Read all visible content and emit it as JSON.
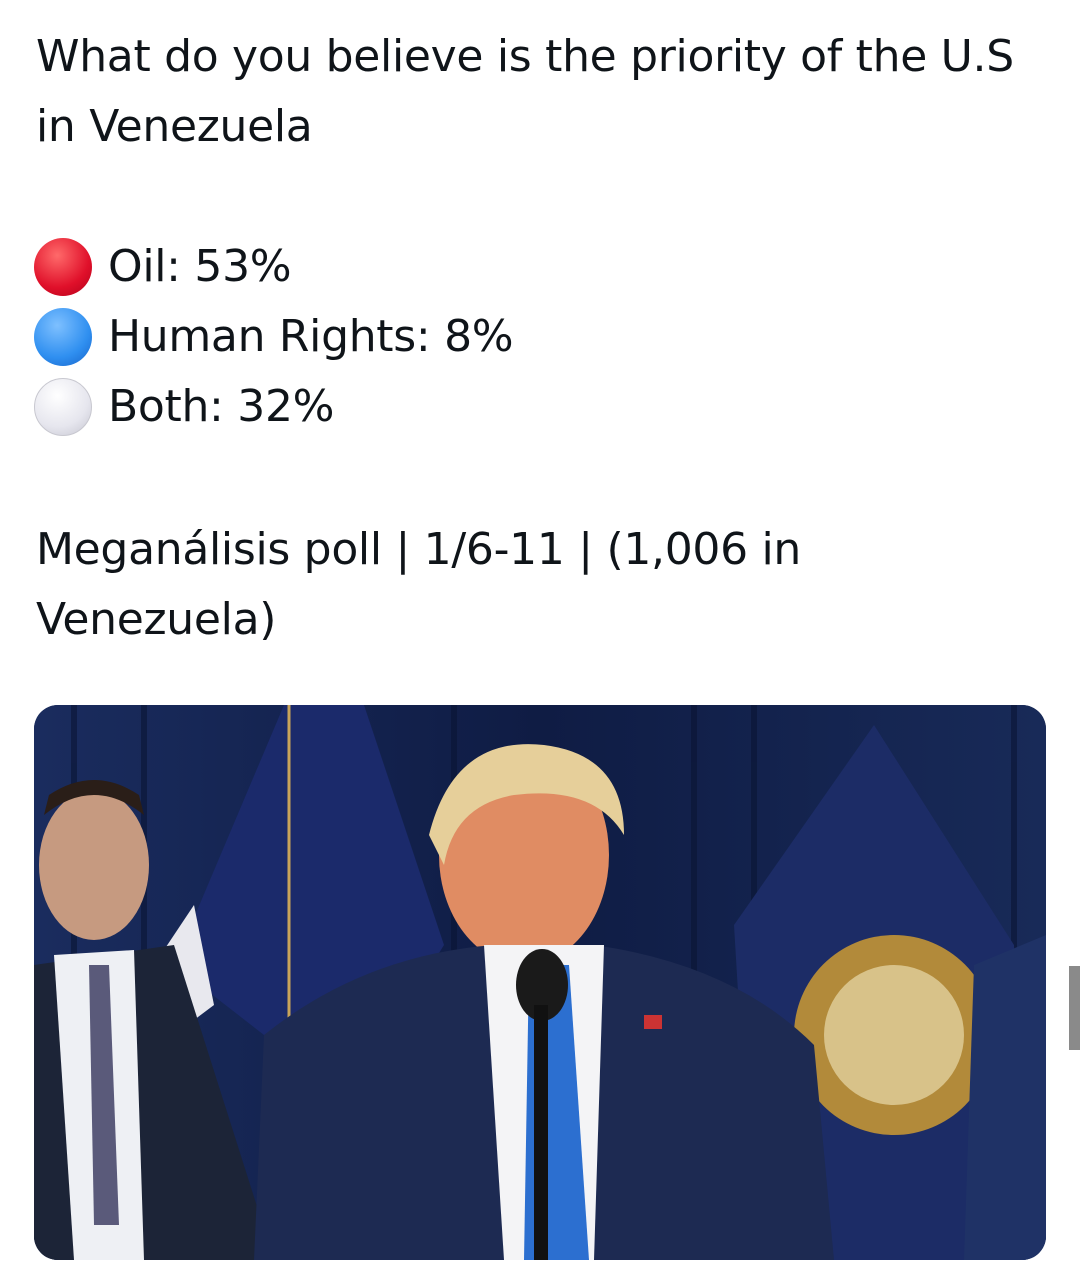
{
  "post": {
    "question": "What do you believe is the priority of the U.S in Venezuela",
    "options": [
      {
        "label": "Oil: 53%",
        "color": "#e0102a",
        "icon": "red-circle-icon"
      },
      {
        "label": "Human Rights: 8%",
        "color": "#2f8ff0",
        "icon": "blue-circle-icon"
      },
      {
        "label": "Both: 32%",
        "color": "#e6e6ee",
        "icon": "white-circle-icon"
      }
    ],
    "source": "Meganálisis poll | 1/6-11 | (1,006 in Venezuela)"
  }
}
